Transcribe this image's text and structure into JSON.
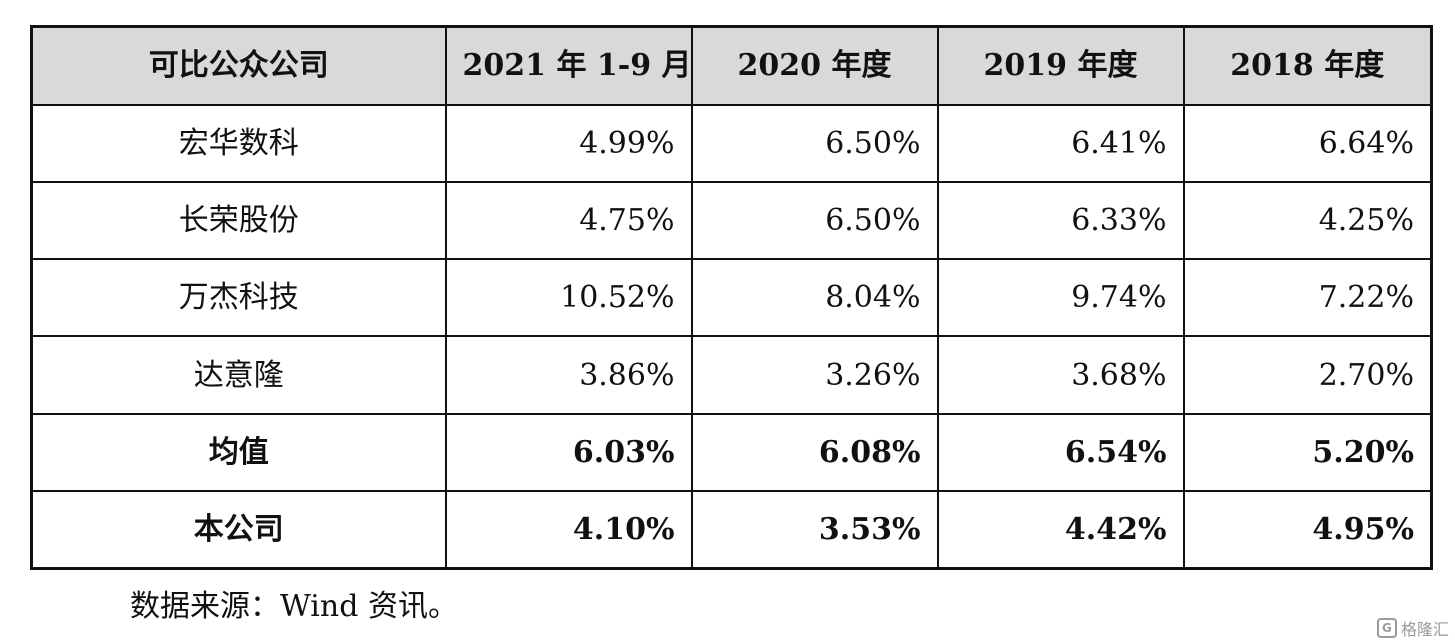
{
  "table": {
    "headers": [
      "可比公众公司",
      "2021 年 1-9 月",
      "2020 年度",
      "2019 年度",
      "2018 年度"
    ],
    "rows": [
      {
        "name": "宏华数科",
        "values": [
          "4.99%",
          "6.50%",
          "6.41%",
          "6.64%"
        ]
      },
      {
        "name": "长荣股份",
        "values": [
          "4.75%",
          "6.50%",
          "6.33%",
          "4.25%"
        ]
      },
      {
        "name": "万杰科技",
        "values": [
          "10.52%",
          "8.04%",
          "9.74%",
          "7.22%"
        ]
      },
      {
        "name": "达意隆",
        "values": [
          "3.86%",
          "3.26%",
          "3.68%",
          "2.70%"
        ]
      },
      {
        "name": "均值",
        "values": [
          "6.03%",
          "6.08%",
          "6.54%",
          "5.20%"
        ]
      },
      {
        "name": "本公司",
        "values": [
          "4.10%",
          "3.53%",
          "4.42%",
          "4.95%"
        ]
      }
    ]
  },
  "source_note": "数据来源：Wind 资讯。",
  "watermark": {
    "logo_glyph": "G",
    "text": "格隆汇"
  },
  "colors": {
    "header_bg": "#d9d9d9",
    "border": "#111111"
  }
}
